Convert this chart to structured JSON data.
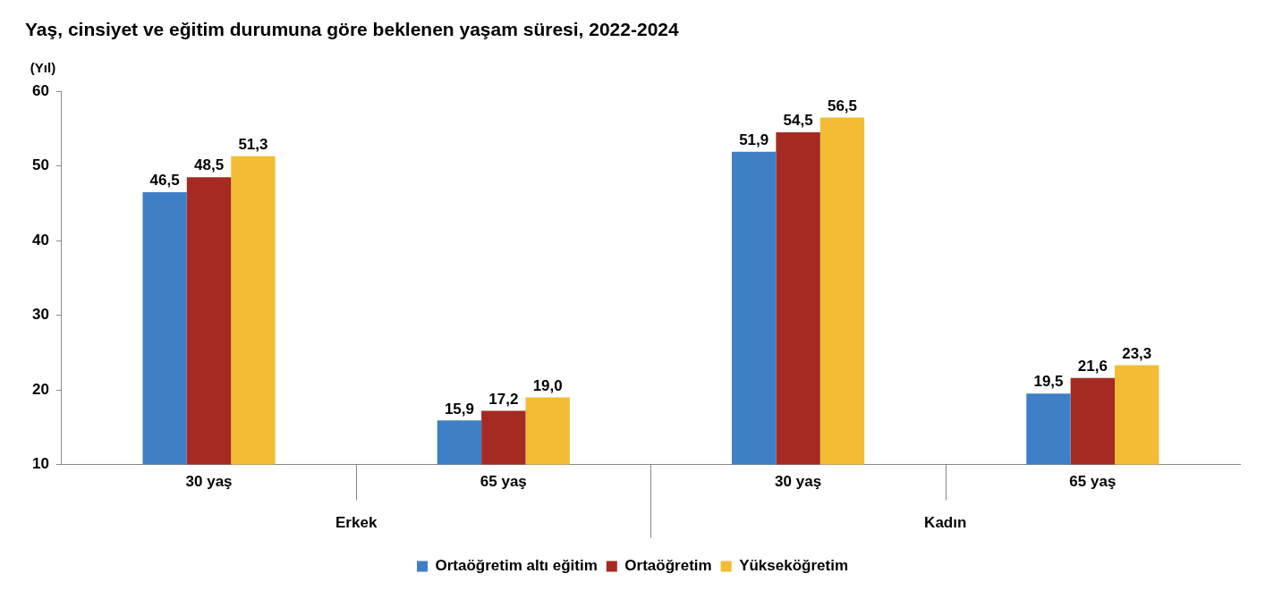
{
  "chart_data": {
    "type": "bar",
    "title": "Yaş, cinsiyet ve eğitim durumuna göre beklenen yaşam süresi, 2022-2024",
    "ylabel": "(Yıl)",
    "categories": [
      "30 yaş",
      "65 yaş",
      "30 yaş",
      "65 yaş"
    ],
    "annotations": [
      "Erkek",
      "Kadın"
    ],
    "series": [
      {
        "name": "Ortaöğretim altı eğitim",
        "color": "#3f7fc6",
        "values": [
          46.5,
          15.9,
          51.9,
          19.5
        ],
        "value_labels": [
          "46,5",
          "15,9",
          "51,9",
          "19,5"
        ]
      },
      {
        "name": "Ortaöğretim",
        "color": "#a52a22",
        "values": [
          48.5,
          17.2,
          54.5,
          21.6
        ],
        "value_labels": [
          "48,5",
          "17,2",
          "54,5",
          "21,6"
        ]
      },
      {
        "name": "Yükseköğretim",
        "color": "#f3bc34",
        "values": [
          51.3,
          19.0,
          56.5,
          23.3
        ],
        "value_labels": [
          "51,3",
          "19,0",
          "56,5",
          "23,3"
        ]
      }
    ],
    "ylim": [
      10,
      60
    ],
    "yticks": [
      10,
      20,
      30,
      40,
      50,
      60
    ],
    "grid": false,
    "legend": "bottom"
  }
}
